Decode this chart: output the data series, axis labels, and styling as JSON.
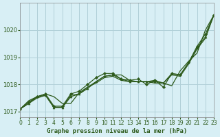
{
  "title": "Graphe pression niveau de la mer (hPa)",
  "bg_color": "#d8eff5",
  "grid_color": "#b0d0d8",
  "line_color": "#2d5a1b",
  "marker_color": "#2d5a1b",
  "xlim": [
    0,
    23
  ],
  "ylim": [
    1016.8,
    1021.0
  ],
  "yticks": [
    1017,
    1018,
    1019,
    1020
  ],
  "xticks": [
    0,
    1,
    2,
    3,
    4,
    5,
    6,
    7,
    8,
    9,
    10,
    11,
    12,
    13,
    14,
    15,
    16,
    17,
    18,
    19,
    20,
    21,
    22,
    23
  ],
  "series": [
    [
      1017.1,
      1017.4,
      1017.55,
      1017.65,
      1017.55,
      1017.3,
      1017.3,
      1017.7,
      1017.9,
      1018.1,
      1018.3,
      1018.35,
      1018.35,
      1018.15,
      1018.1,
      1018.1,
      1018.15,
      1018.05,
      1017.95,
      1018.5,
      1018.85,
      1019.15,
      1020.0,
      1020.55
    ],
    [
      1017.1,
      1017.35,
      1017.55,
      1017.65,
      1017.2,
      1017.2,
      1017.65,
      1017.75,
      1018.0,
      1018.25,
      1018.4,
      1018.4,
      1018.2,
      1018.15,
      1018.2,
      1018.0,
      1018.15,
      1017.9,
      1018.4,
      1018.35,
      1018.8,
      1019.4,
      1019.85,
      1020.55
    ],
    [
      1017.1,
      1017.3,
      1017.55,
      1017.6,
      1017.15,
      1017.15,
      1017.55,
      1017.65,
      1017.85,
      1018.1,
      1018.3,
      1018.35,
      1018.2,
      1018.1,
      1018.1,
      1018.1,
      1018.1,
      1018.05,
      1018.4,
      1018.35,
      1018.8,
      1019.35,
      1019.75,
      1020.55
    ],
    [
      1017.1,
      1017.3,
      1017.5,
      1017.6,
      1017.15,
      1017.15,
      1017.6,
      1017.65,
      1017.9,
      1018.05,
      1018.25,
      1018.3,
      1018.15,
      1018.1,
      1018.1,
      1018.1,
      1018.05,
      1018.05,
      1018.35,
      1018.3,
      1018.75,
      1019.3,
      1019.7,
      1020.55
    ]
  ],
  "markers": [
    "none",
    "D",
    "^",
    "none"
  ]
}
